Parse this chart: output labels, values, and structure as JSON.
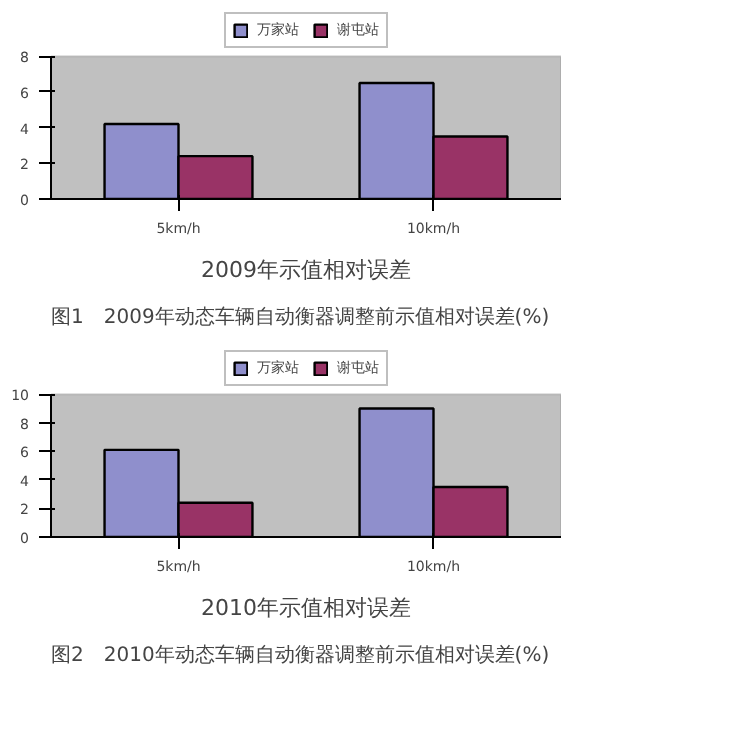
{
  "chart_data": [
    {
      "type": "bar",
      "title": "2009年示值相对误差",
      "categories": [
        "5km/h",
        "10km/h"
      ],
      "series": [
        {
          "name": "万家站",
          "color": "#8f8fcc",
          "values": [
            4.2,
            6.5
          ]
        },
        {
          "name": "谢屯站",
          "color": "#993366",
          "values": [
            2.4,
            3.5
          ]
        }
      ],
      "ylim": [
        0,
        8
      ],
      "yticks": [
        0,
        2,
        4,
        6,
        8
      ],
      "grid": false,
      "legend": "top",
      "annotations": [
        "图1　2009年动态车辆自动衡器调整前示值相对误差(%)"
      ]
    },
    {
      "type": "bar",
      "title": "2010年示值相对误差",
      "categories": [
        "5km/h",
        "10km/h"
      ],
      "series": [
        {
          "name": "万家站",
          "color": "#8f8fcc",
          "values": [
            6.1,
            9.0
          ]
        },
        {
          "name": "谢屯站",
          "color": "#993366",
          "values": [
            2.4,
            3.5
          ]
        }
      ],
      "ylim": [
        0,
        10
      ],
      "yticks": [
        0,
        2,
        4,
        6,
        8,
        10
      ],
      "grid": false,
      "legend": "top",
      "annotations": [
        "图2　2010年动态车辆自动衡器调整前示值相对误差(%)"
      ]
    }
  ]
}
